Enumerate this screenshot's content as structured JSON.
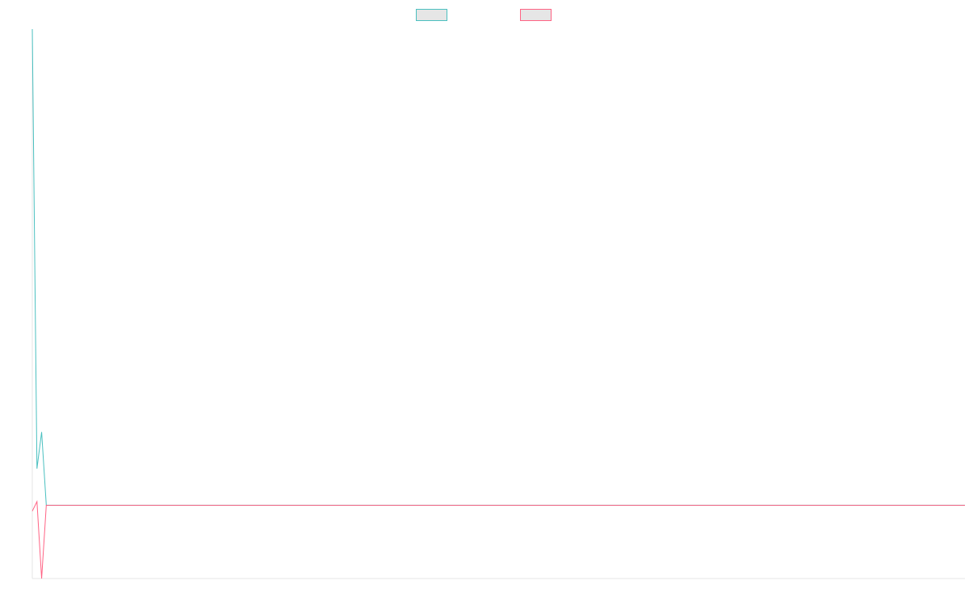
{
  "chart_data": {
    "type": "line",
    "title": "",
    "xlabel": "",
    "ylabel": "",
    "x": [
      0,
      1,
      2,
      3,
      4,
      5,
      6,
      7,
      8,
      9,
      10,
      11,
      12,
      13,
      14,
      15,
      16,
      17,
      18,
      19,
      20,
      21,
      22,
      23,
      24,
      25,
      26,
      27,
      28,
      29,
      30,
      31,
      32,
      33,
      34,
      35,
      36,
      37,
      38,
      39,
      40,
      41,
      42,
      43,
      44,
      45,
      46,
      47,
      48,
      49,
      50,
      51,
      52,
      53,
      54,
      55,
      56,
      57,
      58,
      59,
      60,
      61,
      62,
      63,
      64,
      65,
      66,
      67,
      68,
      69,
      70,
      71,
      72,
      73,
      74,
      75,
      76,
      77,
      78,
      79,
      80,
      81,
      82,
      83,
      84,
      85,
      86,
      87,
      88,
      89,
      90,
      91,
      92,
      93,
      94,
      95,
      96,
      97,
      98,
      99,
      100,
      101,
      102,
      103,
      104,
      105,
      106,
      107,
      108,
      109,
      110,
      111,
      112,
      113,
      114,
      115,
      116,
      117,
      118,
      119,
      120,
      121,
      122,
      123,
      124,
      125,
      126,
      127,
      128,
      129,
      130,
      131,
      132,
      133,
      134,
      135,
      136,
      137,
      138,
      139,
      140,
      141,
      142,
      143,
      144,
      145,
      146,
      147,
      148,
      149,
      150,
      151,
      152,
      153,
      154,
      155,
      156,
      157,
      158,
      159,
      160,
      161,
      162,
      163,
      164,
      165,
      166,
      167,
      168,
      169,
      170,
      171,
      172,
      173,
      174,
      175,
      176,
      177,
      178,
      179,
      180,
      181,
      182,
      183,
      184,
      185,
      186,
      187,
      188,
      189,
      190,
      191,
      192,
      193,
      194,
      195,
      196,
      197,
      198,
      199,
      200
    ],
    "xlim": [
      0,
      200
    ],
    "ylim": [
      -1,
      6.5
    ],
    "grid": false,
    "legend_position": "top-center",
    "series": [
      {
        "name": "",
        "color": "#4bc0c0",
        "fill": "#e6e6e6",
        "values": [
          6.5,
          0.5,
          1.0,
          0,
          0,
          0,
          0,
          0,
          0,
          0,
          0,
          0,
          0,
          0,
          0,
          0,
          0,
          0,
          0,
          0,
          0,
          0,
          0,
          0,
          0,
          0,
          0,
          0,
          0,
          0,
          0,
          0,
          0,
          0,
          0,
          0,
          0,
          0,
          0,
          0,
          0,
          0,
          0,
          0,
          0,
          0,
          0,
          0,
          0,
          0,
          0,
          0,
          0,
          0,
          0,
          0,
          0,
          0,
          0,
          0,
          0,
          0,
          0,
          0,
          0,
          0,
          0,
          0,
          0,
          0,
          0,
          0,
          0,
          0,
          0,
          0,
          0,
          0,
          0,
          0,
          0,
          0,
          0,
          0,
          0,
          0,
          0,
          0,
          0,
          0,
          0,
          0,
          0,
          0,
          0,
          0,
          0,
          0,
          0,
          0,
          0,
          0,
          0,
          0,
          0,
          0,
          0,
          0,
          0,
          0,
          0,
          0,
          0,
          0,
          0,
          0,
          0,
          0,
          0,
          0,
          0,
          0,
          0,
          0,
          0,
          0,
          0,
          0,
          0,
          0,
          0,
          0,
          0,
          0,
          0,
          0,
          0,
          0,
          0,
          0,
          0,
          0,
          0,
          0,
          0,
          0,
          0,
          0,
          0,
          0,
          0,
          0,
          0,
          0,
          0,
          0,
          0,
          0,
          0,
          0,
          0,
          0,
          0,
          0,
          0,
          0,
          0,
          0,
          0,
          0,
          0,
          0,
          0,
          0,
          0,
          0,
          0,
          0,
          0,
          0,
          0,
          0,
          0,
          0,
          0,
          0,
          0,
          0,
          0,
          0,
          0,
          0,
          0,
          0,
          0,
          0,
          0,
          0,
          0,
          0,
          0
        ]
      },
      {
        "name": "",
        "color": "#ff6384",
        "fill": "#e6e6e6",
        "values": [
          -0.08,
          0.05,
          -1.0,
          0,
          0,
          0,
          0,
          0,
          0,
          0,
          0,
          0,
          0,
          0,
          0,
          0,
          0,
          0,
          0,
          0,
          0,
          0,
          0,
          0,
          0,
          0,
          0,
          0,
          0,
          0,
          0,
          0,
          0,
          0,
          0,
          0,
          0,
          0,
          0,
          0,
          0,
          0,
          0,
          0,
          0,
          0,
          0,
          0,
          0,
          0,
          0,
          0,
          0,
          0,
          0,
          0,
          0,
          0,
          0,
          0,
          0,
          0,
          0,
          0,
          0,
          0,
          0,
          0,
          0,
          0,
          0,
          0,
          0,
          0,
          0,
          0,
          0,
          0,
          0,
          0,
          0,
          0,
          0,
          0,
          0,
          0,
          0,
          0,
          0,
          0,
          0,
          0,
          0,
          0,
          0,
          0,
          0,
          0,
          0,
          0,
          0,
          0,
          0,
          0,
          0,
          0,
          0,
          0,
          0,
          0,
          0,
          0,
          0,
          0,
          0,
          0,
          0,
          0,
          0,
          0,
          0,
          0,
          0,
          0,
          0,
          0,
          0,
          0,
          0,
          0,
          0,
          0,
          0,
          0,
          0,
          0,
          0,
          0,
          0,
          0,
          0,
          0,
          0,
          0,
          0,
          0,
          0,
          0,
          0,
          0,
          0,
          0,
          0,
          0,
          0,
          0,
          0,
          0,
          0,
          0,
          0,
          0,
          0,
          0,
          0,
          0,
          0,
          0,
          0,
          0,
          0,
          0,
          0,
          0,
          0,
          0,
          0,
          0,
          0,
          0,
          0,
          0,
          0,
          0,
          0,
          0,
          0,
          0,
          0,
          0,
          0,
          0,
          0,
          0,
          0,
          0,
          0,
          0,
          0,
          0,
          0
        ]
      }
    ]
  }
}
